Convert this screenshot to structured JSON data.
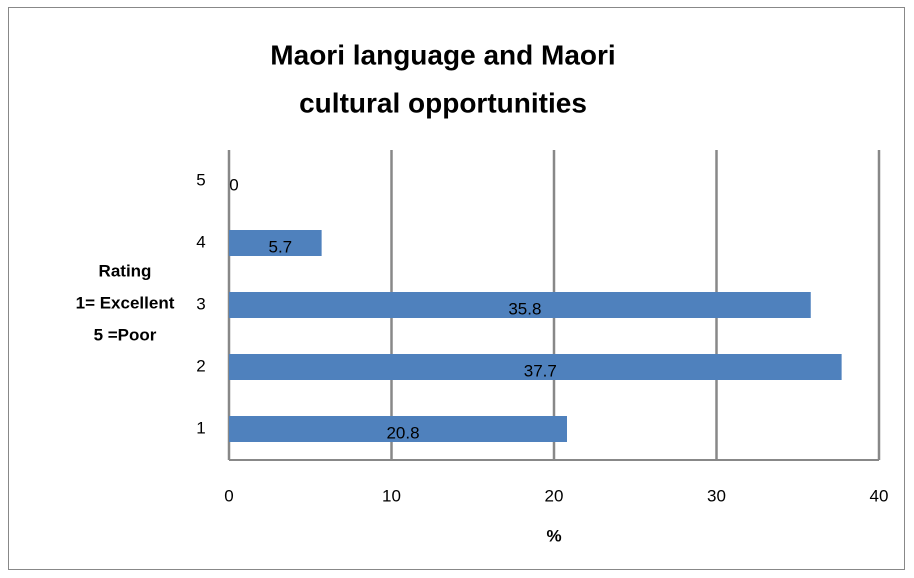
{
  "chart_data": {
    "type": "bar",
    "orientation": "horizontal",
    "title": [
      "Maori language and Maori",
      "cultural opportunities"
    ],
    "xlabel": "%",
    "ylabel": [
      "Rating",
      "1= Excellent",
      "5 =Poor"
    ],
    "categories": [
      "5",
      "4",
      "3",
      "2",
      "1"
    ],
    "values": [
      0,
      5.7,
      35.8,
      37.7,
      20.8
    ],
    "color": "#4f81bd",
    "xlim": [
      0,
      40
    ],
    "xticks": [
      0,
      10,
      20,
      30,
      40
    ],
    "grid": true
  }
}
